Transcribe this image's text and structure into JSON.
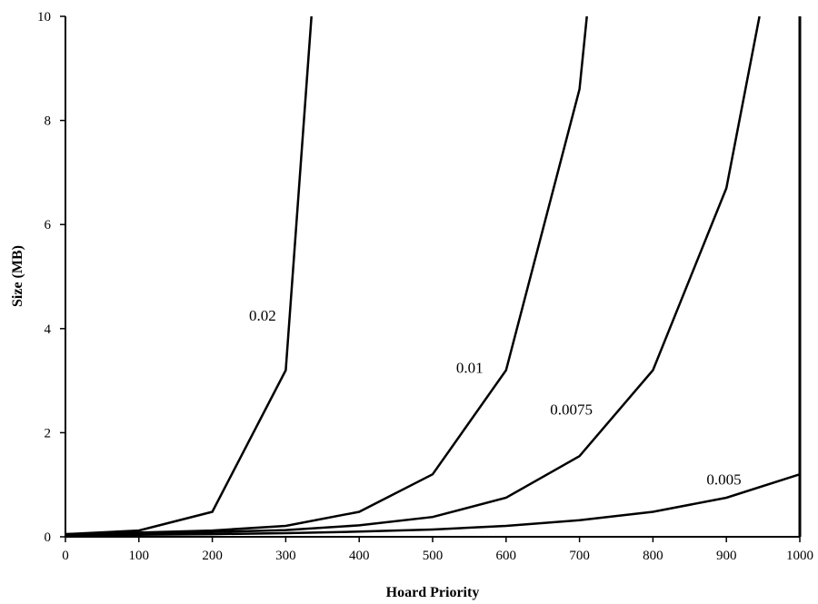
{
  "chart_data": {
    "type": "line",
    "title": "",
    "xlabel": "Hoard Priority",
    "ylabel": "Size (MB)",
    "xlim": [
      0,
      1000
    ],
    "ylim": [
      0,
      10
    ],
    "x_ticks": [
      "0",
      "100",
      "200",
      "300",
      "400",
      "500",
      "600",
      "700",
      "800",
      "900",
      "1000"
    ],
    "y_ticks": [
      "0",
      "2",
      "4",
      "6",
      "8",
      "10"
    ],
    "grid": false,
    "legend": "none",
    "series": [
      {
        "name": "0.02",
        "x": [
          0,
          100,
          200,
          300,
          335
        ],
        "values": [
          0.05,
          0.12,
          0.48,
          3.2,
          10.0
        ]
      },
      {
        "name": "0.01",
        "x": [
          0,
          100,
          200,
          300,
          400,
          500,
          600,
          700,
          710
        ],
        "values": [
          0.05,
          0.08,
          0.12,
          0.21,
          0.48,
          1.2,
          3.2,
          8.6,
          10.0
        ]
      },
      {
        "name": "0.0075",
        "x": [
          0,
          100,
          200,
          300,
          400,
          500,
          600,
          700,
          800,
          900,
          945
        ],
        "values": [
          0.04,
          0.06,
          0.09,
          0.13,
          0.22,
          0.38,
          0.75,
          1.55,
          3.2,
          6.7,
          10.0
        ]
      },
      {
        "name": "0.005",
        "x": [
          0,
          100,
          200,
          300,
          400,
          500,
          600,
          700,
          800,
          900,
          1000
        ],
        "values": [
          0.03,
          0.04,
          0.05,
          0.07,
          0.1,
          0.14,
          0.21,
          0.32,
          0.48,
          0.75,
          1.2
        ]
      }
    ]
  }
}
